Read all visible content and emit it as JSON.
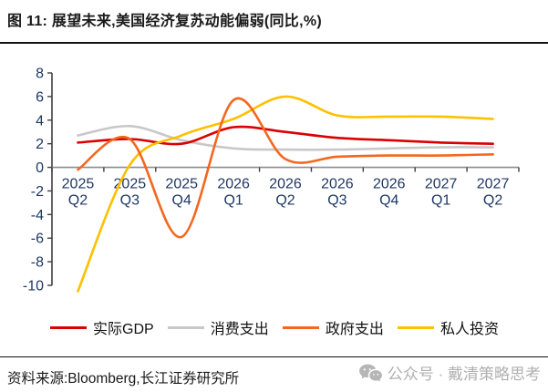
{
  "figure": {
    "title": "图 11: 展望未来,美国经济复苏动能偏弱(同比,%)"
  },
  "chart_data": {
    "type": "line",
    "title": "展望未来,美国经济复苏动能偏弱(同比,%)",
    "categories": [
      "2025 Q2",
      "2025 Q3",
      "2025 Q4",
      "2026 Q1",
      "2026 Q2",
      "2026 Q3",
      "2026 Q4",
      "2027 Q1",
      "2027 Q2"
    ],
    "series": [
      {
        "name": "实际GDP",
        "color": "#DB0000",
        "values": [
          2.1,
          2.4,
          2.0,
          3.4,
          3.0,
          2.5,
          2.3,
          2.1,
          2.0
        ]
      },
      {
        "name": "消费支出",
        "color": "#C8C8C8",
        "values": [
          2.7,
          3.5,
          2.3,
          1.6,
          1.5,
          1.5,
          1.6,
          1.7,
          1.7
        ]
      },
      {
        "name": "政府支出",
        "color": "#F4671E",
        "values": [
          -0.2,
          2.4,
          -5.9,
          5.7,
          0.7,
          0.9,
          1.0,
          1.0,
          1.1
        ]
      },
      {
        "name": "私人投资",
        "color": "#FFC000",
        "values": [
          -10.5,
          0.2,
          2.7,
          4.1,
          6.0,
          4.4,
          4.3,
          4.3,
          4.1
        ]
      }
    ],
    "ylim": [
      -10,
      8
    ],
    "ytick_step": 2,
    "xlabel": "",
    "ylabel": "",
    "grid": false,
    "legend_position": "bottom",
    "axis_label_color": "#1F3864",
    "axis_line_color": "#3f3f3f",
    "zero_line_color": "#8c8c8c",
    "draw_order": [
      1,
      0,
      3,
      2
    ]
  },
  "footer": {
    "source": "资料来源:Bloomberg,长江证券研究所"
  },
  "watermark": {
    "icon": "wechat-icon",
    "text": "公众号 · 戴清策略思考"
  }
}
